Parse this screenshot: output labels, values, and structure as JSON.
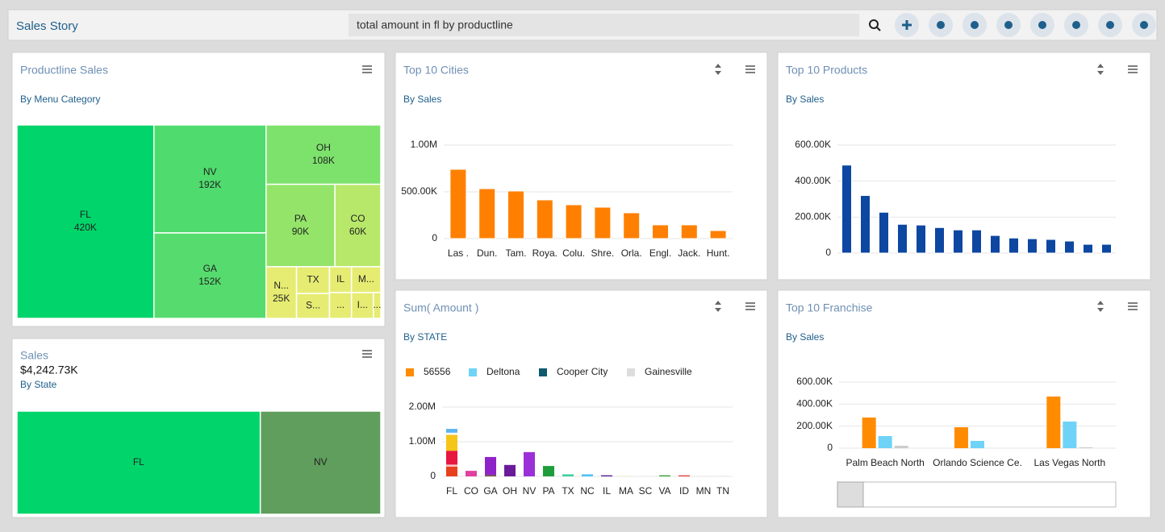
{
  "header": {
    "title": "Sales Story",
    "search": "total amount in fl by productline"
  },
  "productline": {
    "type": "treemap",
    "title": "Productline Sales",
    "subtitle": "By Menu Category",
    "labels": [
      "FL",
      "NV",
      "GA",
      "OH",
      "PA",
      "CO",
      "N...",
      "TX",
      "S...",
      "IL",
      "M...",
      "...",
      "I...",
      "..."
    ],
    "values": [
      420,
      192,
      152,
      108,
      90,
      60,
      25,
      14,
      13,
      9,
      12,
      9,
      9,
      3
    ],
    "value_labels": [
      "420K",
      "192K",
      "152K",
      "108K",
      "90K",
      "60K",
      "25K",
      null,
      null,
      null,
      null,
      null,
      null,
      null
    ],
    "colors": [
      "#00d46a",
      "#4fdb6d",
      "#56dc6e",
      "#7de26c",
      "#94e46a",
      "#b8e86a",
      "#e6ec72",
      "#e6ec72",
      "#e6ec72",
      "#e6ec72",
      "#e6ec72",
      "#e6ec72",
      "#e6ec72",
      "#e6ec72"
    ]
  },
  "sales": {
    "type": "treemap",
    "title": "Sales",
    "total": "$4,242.73K",
    "subtitle": "By State",
    "labels": [
      "FL",
      "NV"
    ],
    "values": [
      2000,
      990
    ],
    "value_labels": [
      null,
      null
    ],
    "colors": [
      "#00d46a",
      "#5f9e5c"
    ]
  },
  "cities": {
    "type": "bar",
    "title": "Top 10 Cities",
    "subtitle": "By Sales",
    "categories": [
      "Las .",
      "Dun.",
      "Tam.",
      "Roya.",
      "Colu.",
      "Shre.",
      "Orla.",
      "Engl.",
      "Jack.",
      "Hunt."
    ],
    "values": [
      741000,
      534000,
      509000,
      414000,
      362000,
      336000,
      276000,
      147000,
      147000,
      86000
    ],
    "color": "#ff8000",
    "ylim": [
      0,
      1000000
    ],
    "yticks": [
      0,
      {
        "value": 500000,
        "label": "500.00K"
      },
      {
        "value": 1000000,
        "label": "1.00M"
      }
    ],
    "grid": true
  },
  "products": {
    "type": "bar",
    "title": "Top 10 Products",
    "subtitle": "By Sales",
    "categories": [
      null,
      null,
      null,
      null,
      null,
      null,
      null,
      null,
      null,
      null,
      null,
      null,
      null,
      null,
      null
    ],
    "values": [
      489000,
      320000,
      227000,
      160000,
      156000,
      142000,
      129000,
      129000,
      98000,
      84000,
      80000,
      76000,
      67000,
      49000,
      49000
    ],
    "color": "#0d47a1",
    "ylim": [
      0,
      600000
    ],
    "yticks": [
      0,
      {
        "value": 200000,
        "label": "200.00K"
      },
      {
        "value": 400000,
        "label": "400.00K"
      },
      {
        "value": 600000,
        "label": "600.00K"
      }
    ],
    "grid": true
  },
  "sum": {
    "type": "stacked",
    "title": "Sum( Amount )",
    "subtitle": "By STATE",
    "legend": [
      {
        "name": "56556",
        "color": "#ff8c00"
      },
      {
        "name": "Deltona",
        "color": "#6fd3f7"
      },
      {
        "name": "Cooper City",
        "color": "#0d5a6e"
      },
      {
        "name": "Gainesville",
        "color": "#dddddd"
      }
    ],
    "categories": [
      "FL",
      "CO",
      "GA",
      "OH",
      "NV",
      "PA",
      "TX",
      "NC",
      "IL",
      "MA",
      "SC",
      "VA",
      "ID",
      "MN",
      "TN"
    ],
    "stacks": [
      [
        {
          "value": 280000,
          "color": "#e8401c"
        },
        {
          "value": 60000,
          "color": "#f4c2c2"
        },
        {
          "value": 400000,
          "color": "#e8173f"
        },
        {
          "value": 460000,
          "color": "#f5c518"
        },
        {
          "value": 60000,
          "color": "#ffffff"
        },
        {
          "value": 110000,
          "color": "#5ab4f0"
        }
      ],
      [
        {
          "value": 160000,
          "color": "#e040a0"
        }
      ],
      [
        {
          "value": 40000,
          "color": "#6d4c41"
        },
        {
          "value": 520000,
          "color": "#8e24c8"
        }
      ],
      [
        {
          "value": 330000,
          "color": "#6a1b9a"
        }
      ],
      [
        {
          "value": 700000,
          "color": "#9b30d9"
        }
      ],
      [
        {
          "value": 300000,
          "color": "#1e9e3a"
        }
      ],
      [
        {
          "value": 60000,
          "color": "#40d0a0"
        }
      ],
      [
        {
          "value": 60000,
          "color": "#4fc3f7"
        }
      ],
      [
        {
          "value": 30000,
          "color": "#4a148c"
        }
      ],
      [
        {
          "value": 10000,
          "color": "#f5deb3"
        }
      ],
      [
        {
          "value": 10000,
          "color": "#e0e0e0"
        }
      ],
      [
        {
          "value": 30000,
          "color": "#2e9e2e"
        }
      ],
      [
        {
          "value": 30000,
          "color": "#e53935"
        }
      ],
      [
        {
          "value": 5000,
          "color": "#d0d0d0"
        }
      ],
      [
        {
          "value": 5000,
          "color": "#d0d0d0"
        }
      ]
    ],
    "ylim": [
      0,
      2000000
    ],
    "yticks": [
      0,
      {
        "value": 1000000,
        "label": "1.00M"
      },
      {
        "value": 2000000,
        "label": "2.00M"
      }
    ],
    "grid": true
  },
  "franchise": {
    "type": "grouped",
    "title": "Top 10 Franchise",
    "subtitle": "By Sales",
    "categories": [
      "Palm Beach North",
      "Orlando Science Ce.",
      "Las Vegas North"
    ],
    "series": [
      {
        "color": "#ff8c00",
        "values": [
          278000,
          190000,
          469000
        ]
      },
      {
        "color": "#6fd3f7",
        "values": [
          110000,
          66000,
          242000
        ]
      },
      {
        "color": "#cccccc",
        "values": [
          22000,
          0,
          8000
        ]
      }
    ],
    "ylim": [
      0,
      600000
    ],
    "yticks": [
      0,
      {
        "value": 200000,
        "label": "200.00K"
      },
      {
        "value": 400000,
        "label": "400.00K"
      },
      {
        "value": 600000,
        "label": "600.00K"
      }
    ],
    "grid": true
  }
}
